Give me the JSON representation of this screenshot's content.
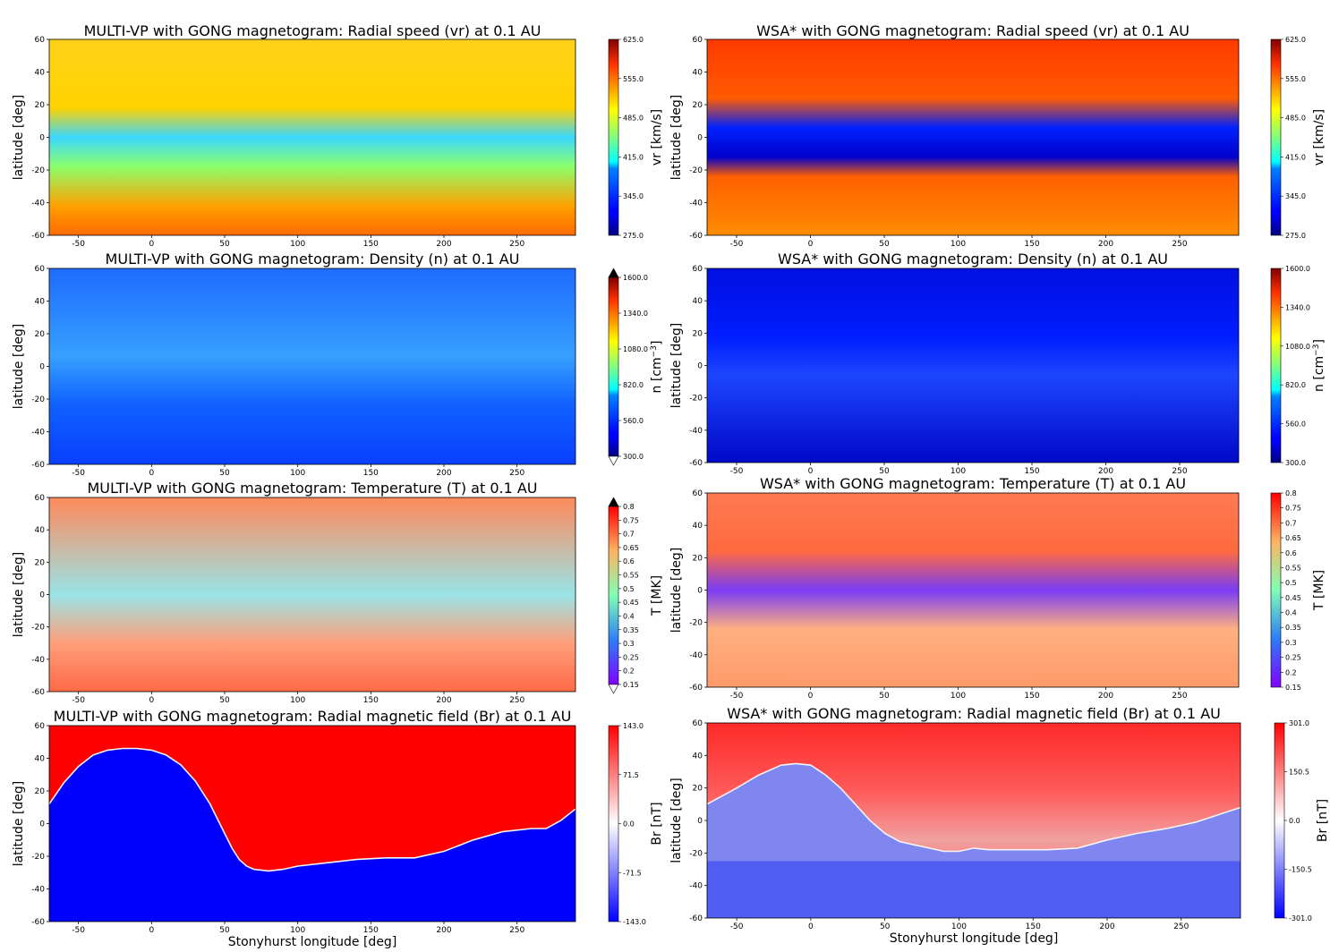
{
  "chart_data": [
    {
      "type": "heatmap",
      "title": "MULTI-VP with GONG magnetogram: Radial speed (vr) at 0.1 AU",
      "ylabel": "latitude [deg]",
      "xlabel": "",
      "xlim": [
        -70,
        290
      ],
      "ylim": [
        -60,
        60
      ],
      "xticks": [
        -50,
        0,
        50,
        100,
        150,
        200,
        250
      ],
      "yticks": [
        60,
        40,
        20,
        0,
        -20,
        -40,
        -60
      ],
      "colorbar": {
        "label": "vr [km/s]",
        "colormap": "jet",
        "ticks": [
          "625.0",
          "555.0",
          "485.0",
          "415.0",
          "345.0",
          "275.0"
        ],
        "range": [
          275,
          625
        ],
        "extend": "neither"
      }
    },
    {
      "type": "heatmap",
      "title": "WSA* with GONG magnetogram: Radial speed (vr) at 0.1 AU",
      "ylabel": "latitude [deg]",
      "xlabel": "",
      "xlim": [
        -70,
        290
      ],
      "ylim": [
        -60,
        60
      ],
      "xticks": [
        -50,
        0,
        50,
        100,
        150,
        200,
        250
      ],
      "yticks": [
        60,
        40,
        20,
        0,
        -20,
        -40,
        -60
      ],
      "colorbar": {
        "label": "vr [km/s]",
        "colormap": "jet",
        "ticks": [
          "625.0",
          "555.0",
          "485.0",
          "415.0",
          "345.0",
          "275.0"
        ],
        "range": [
          275,
          625
        ],
        "extend": "neither"
      }
    },
    {
      "type": "heatmap",
      "title": "MULTI-VP with GONG magnetogram: Density (n) at 0.1 AU",
      "ylabel": "latitude [deg]",
      "xlabel": "",
      "xlim": [
        -70,
        290
      ],
      "ylim": [
        -60,
        60
      ],
      "xticks": [
        -50,
        0,
        50,
        100,
        150,
        200,
        250
      ],
      "yticks": [
        60,
        40,
        20,
        0,
        -20,
        -40,
        -60
      ],
      "colorbar": {
        "label": "n [cm",
        "label_sup": "−3",
        "label_end": "]",
        "colormap": "jet",
        "ticks": [
          "1600.0",
          "1340.0",
          "1080.0",
          "820.0",
          "560.0",
          "300.0"
        ],
        "range": [
          300,
          1600
        ],
        "extend": "both"
      }
    },
    {
      "type": "heatmap",
      "title": "WSA* with GONG magnetogram: Density (n) at 0.1 AU",
      "ylabel": "latitude [deg]",
      "xlabel": "",
      "xlim": [
        -70,
        290
      ],
      "ylim": [
        -60,
        60
      ],
      "xticks": [
        -50,
        0,
        50,
        100,
        150,
        200,
        250
      ],
      "yticks": [
        60,
        40,
        20,
        0,
        -20,
        -40,
        -60
      ],
      "colorbar": {
        "label": "n [cm",
        "label_sup": "−3",
        "label_end": "]",
        "colormap": "jet",
        "ticks": [
          "1600.0",
          "1340.0",
          "1080.0",
          "820.0",
          "560.0",
          "300.0"
        ],
        "range": [
          300,
          1600
        ],
        "extend": "neither"
      }
    },
    {
      "type": "heatmap",
      "title": "MULTI-VP with GONG magnetogram: Temperature (T) at 0.1 AU",
      "ylabel": "latitude [deg]",
      "xlabel": "",
      "xlim": [
        -70,
        290
      ],
      "ylim": [
        -60,
        60
      ],
      "xticks": [
        -50,
        0,
        50,
        100,
        150,
        200,
        250
      ],
      "yticks": [
        60,
        40,
        20,
        0,
        -20,
        -40,
        -60
      ],
      "colorbar": {
        "label": "T [MK]",
        "colormap": "rainbow",
        "ticks": [
          "0.8",
          "0.75",
          "0.7",
          "0.65",
          "0.6",
          "0.55",
          "0.5",
          "0.45",
          "0.4",
          "0.35",
          "0.3",
          "0.25",
          "0.2",
          "0.15"
        ],
        "range": [
          0.15,
          0.8
        ],
        "extend": "both"
      }
    },
    {
      "type": "heatmap",
      "title": "WSA* with GONG magnetogram: Temperature (T) at 0.1 AU",
      "ylabel": "latitude [deg]",
      "xlabel": "",
      "xlim": [
        -70,
        290
      ],
      "ylim": [
        -60,
        60
      ],
      "xticks": [
        -50,
        0,
        50,
        100,
        150,
        200,
        250
      ],
      "yticks": [
        60,
        40,
        20,
        0,
        -20,
        -40,
        -60
      ],
      "colorbar": {
        "label": "T [MK]",
        "colormap": "rainbow",
        "ticks": [
          "0.8",
          "0.75",
          "0.7",
          "0.65",
          "0.6",
          "0.55",
          "0.5",
          "0.45",
          "0.4",
          "0.35",
          "0.3",
          "0.25",
          "0.2",
          "0.15"
        ],
        "range": [
          0.15,
          0.8
        ],
        "extend": "neither"
      }
    },
    {
      "type": "heatmap",
      "title": "MULTI-VP with GONG magnetogram: Radial magnetic field (Br) at 0.1 AU",
      "ylabel": "latitude [deg]",
      "xlabel": "Stonyhurst longitude [deg]",
      "xlim": [
        -70,
        290
      ],
      "ylim": [
        -60,
        60
      ],
      "xticks": [
        -50,
        0,
        50,
        100,
        150,
        200,
        250
      ],
      "yticks": [
        60,
        40,
        20,
        0,
        -20,
        -40,
        -60
      ],
      "colorbar": {
        "label": "Br [nT]",
        "colormap": "bwr",
        "ticks": [
          "143.0",
          "71.5",
          "0.0",
          "-71.5",
          "-143.0"
        ],
        "range": [
          -143,
          143
        ],
        "extend": "neither"
      }
    },
    {
      "type": "heatmap",
      "title": "WSA* with GONG magnetogram: Radial magnetic field (Br) at 0.1 AU",
      "ylabel": "latitude [deg]",
      "xlabel": "Stonyhurst longitude [deg]",
      "xlim": [
        -70,
        290
      ],
      "ylim": [
        -60,
        60
      ],
      "xticks": [
        -50,
        0,
        50,
        100,
        150,
        200,
        250
      ],
      "yticks": [
        60,
        40,
        20,
        0,
        -20,
        -40,
        -60
      ],
      "colorbar": {
        "label": "Br [nT]",
        "colormap": "bwr",
        "ticks": [
          "301.0",
          "150.5",
          "0.0",
          "-150.5",
          "-301.0"
        ],
        "range": [
          -301,
          301
        ],
        "extend": "neither"
      }
    }
  ],
  "neutral_lines": [
    {
      "name": "multivp-hcs",
      "lon": [
        -70,
        -60,
        -50,
        -40,
        -30,
        -20,
        -10,
        0,
        10,
        20,
        30,
        40,
        45,
        50,
        55,
        60,
        65,
        70,
        80,
        90,
        100,
        120,
        140,
        160,
        180,
        200,
        220,
        240,
        260,
        270,
        280,
        290
      ],
      "lat": [
        12,
        25,
        35,
        42,
        45,
        46,
        46,
        45,
        42,
        36,
        26,
        12,
        3,
        -6,
        -15,
        -22,
        -26,
        -28,
        -29,
        -28,
        -26,
        -24,
        -22,
        -21,
        -21,
        -17,
        -10,
        -5,
        -3,
        -3,
        2,
        9
      ]
    },
    {
      "name": "wsa-hcs",
      "lon": [
        -70,
        -50,
        -35,
        -20,
        -10,
        0,
        10,
        20,
        30,
        40,
        50,
        60,
        70,
        80,
        90,
        100,
        110,
        120,
        140,
        160,
        180,
        200,
        220,
        240,
        260,
        270,
        280,
        290
      ],
      "lat": [
        10,
        20,
        28,
        34,
        35,
        34,
        28,
        20,
        10,
        0,
        -8,
        -13,
        -15,
        -17,
        -19,
        -19,
        -17,
        -18,
        -18,
        -18,
        -17,
        -12,
        -8,
        -5,
        -1,
        2,
        5,
        8
      ]
    }
  ],
  "colors": {
    "positive_field": "#ff0000",
    "negative_field": "#0000ff",
    "background": "#ffffff"
  }
}
